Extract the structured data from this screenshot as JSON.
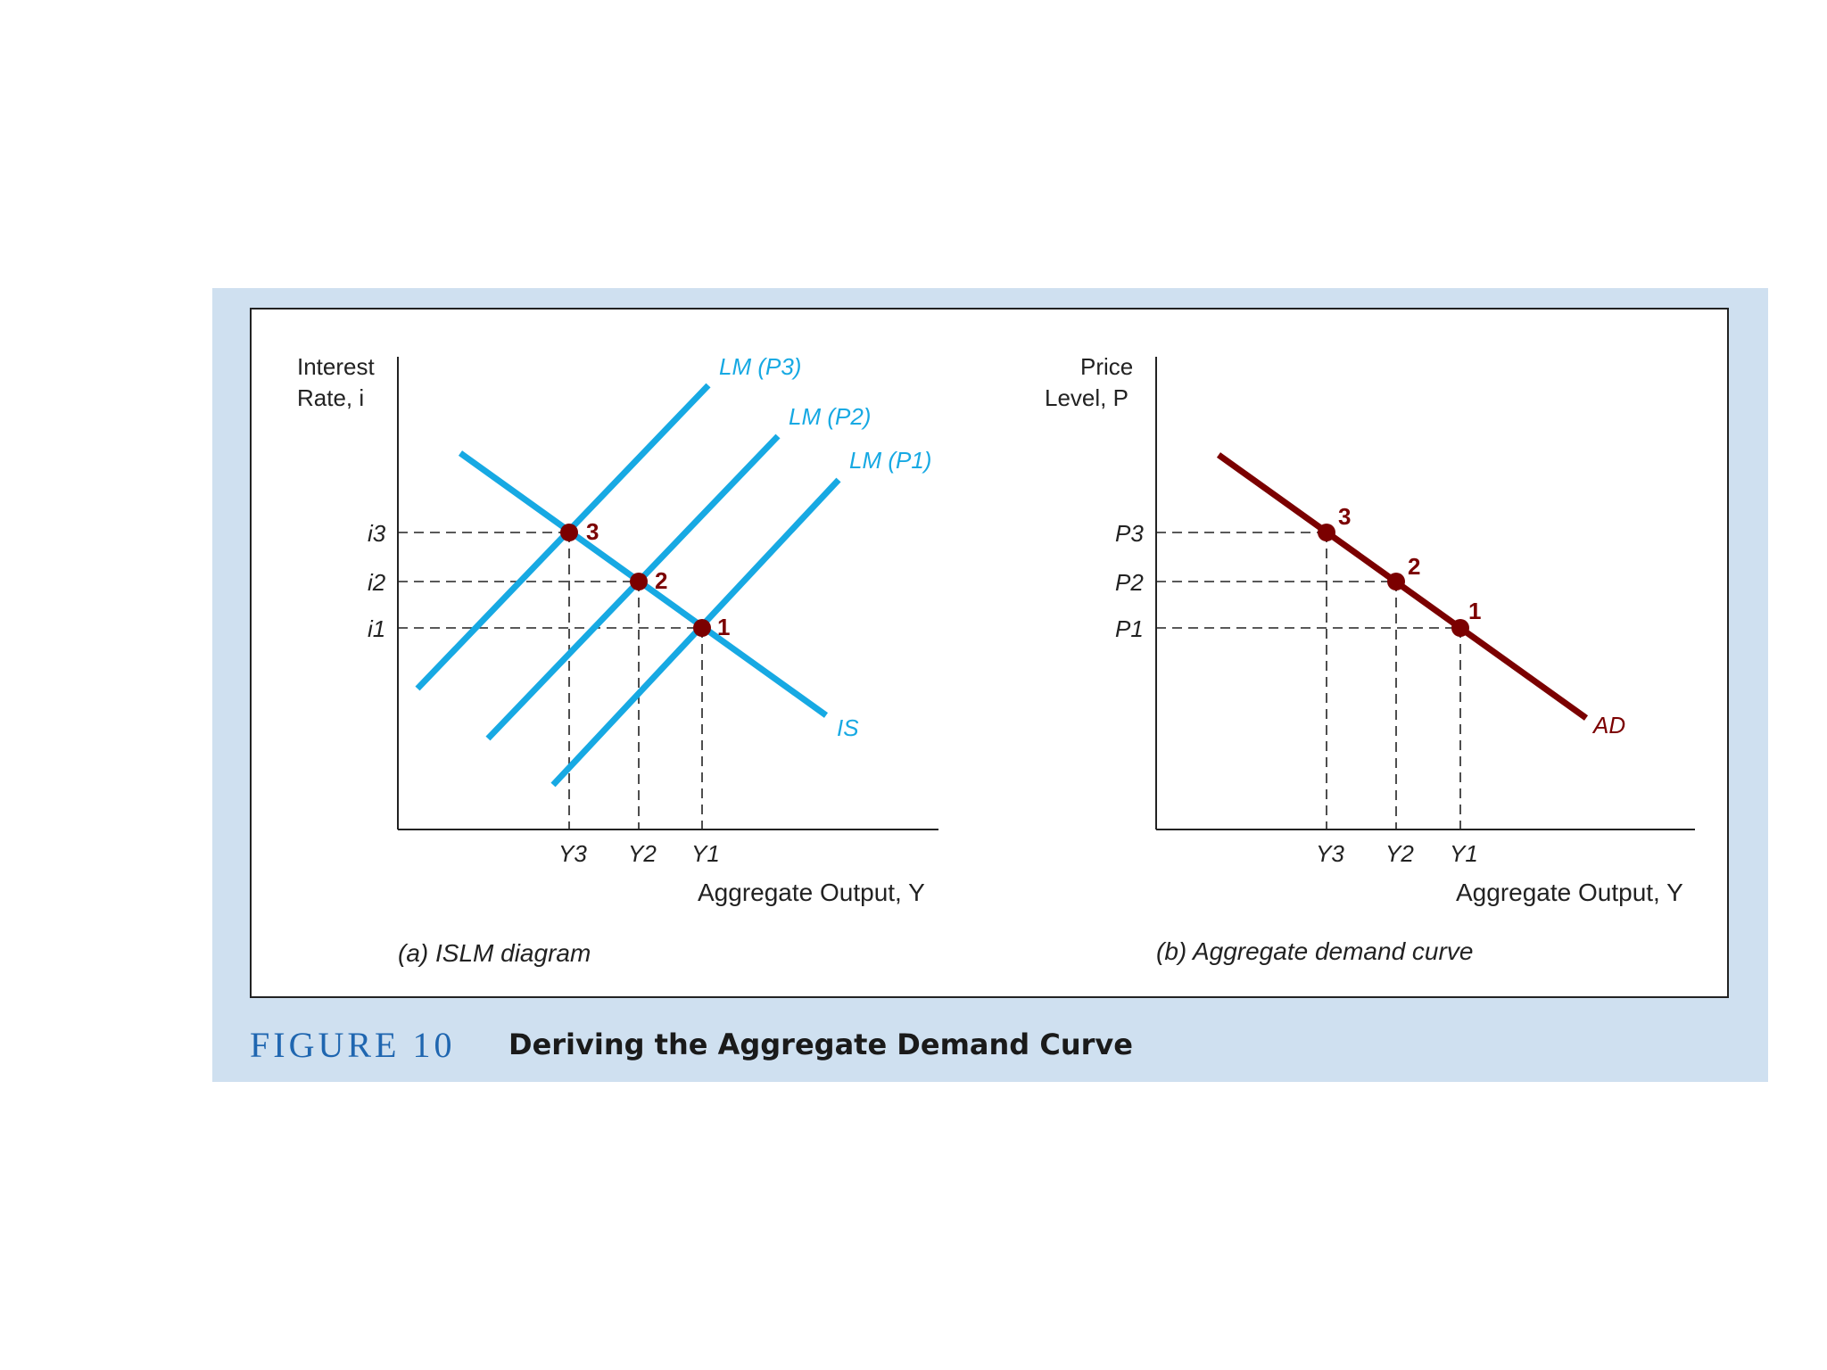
{
  "caption": {
    "number": "FIGURE 10",
    "title": "Deriving the Aggregate Demand Curve"
  },
  "colors": {
    "panel_bg": "#cfe0f0",
    "islm_lines": "#17a9e3",
    "ad_line": "#7b0000",
    "points": "#7b0000",
    "point_labels": "#7b0000"
  },
  "panel_a": {
    "y_axis_label": [
      "Interest",
      "Rate, i"
    ],
    "x_axis_label": "Aggregate Output, Y",
    "subtitle": "(a) ISLM diagram",
    "y_ticks": [
      "i3",
      "i2",
      "i1"
    ],
    "x_ticks": [
      "Y3",
      "Y2",
      "Y1"
    ],
    "curves": [
      "LM (P3)",
      "LM (P2)",
      "LM (P1)",
      "IS"
    ],
    "points": [
      {
        "label": "3",
        "x": "Y3",
        "y": "i3"
      },
      {
        "label": "2",
        "x": "Y2",
        "y": "i2"
      },
      {
        "label": "1",
        "x": "Y1",
        "y": "i1"
      }
    ]
  },
  "panel_b": {
    "y_axis_label": [
      "Price",
      "Level, P"
    ],
    "x_axis_label": "Aggregate Output, Y",
    "subtitle": "(b) Aggregate demand curve",
    "y_ticks": [
      "P3",
      "P2",
      "P1"
    ],
    "x_ticks": [
      "Y3",
      "Y2",
      "Y1"
    ],
    "curves": [
      "AD"
    ],
    "points": [
      {
        "label": "3",
        "x": "Y3",
        "y": "P3"
      },
      {
        "label": "2",
        "x": "Y2",
        "y": "P2"
      },
      {
        "label": "1",
        "x": "Y1",
        "y": "P1"
      }
    ]
  }
}
